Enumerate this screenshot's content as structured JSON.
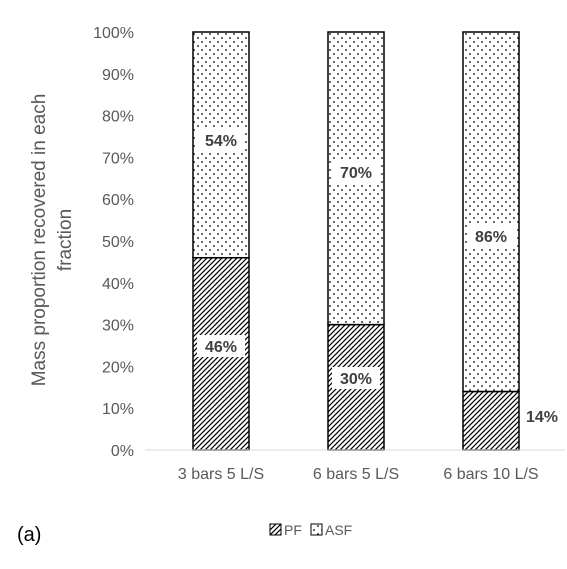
{
  "chart_data": {
    "type": "bar",
    "stacked": true,
    "categories": [
      "3 bars 5 L/S",
      "6 bars 5 L/S",
      "6 bars 10 L/S"
    ],
    "series": [
      {
        "name": "PF",
        "values": [
          46,
          30,
          14
        ],
        "pattern": "diagonal-hatch"
      },
      {
        "name": "ASF",
        "values": [
          54,
          70,
          86
        ],
        "pattern": "dots"
      }
    ],
    "data_labels": {
      "PF": [
        "46%",
        "30%",
        "14%"
      ],
      "ASF": [
        "54%",
        "70%",
        "86%"
      ]
    },
    "ylabel": "Mass proportion recovered in each fraction",
    "ylim": [
      0,
      100
    ],
    "yticks": [
      "0%",
      "10%",
      "20%",
      "30%",
      "40%",
      "50%",
      "60%",
      "70%",
      "80%",
      "90%",
      "100%"
    ],
    "grid": false,
    "legend": "bottom",
    "panel_label": "(a)"
  }
}
